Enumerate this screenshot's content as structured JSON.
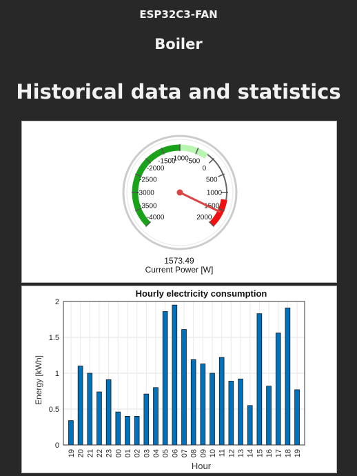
{
  "header": {
    "device_name": "ESP32C3-FAN",
    "room_name": "Boiler",
    "section_title": "Historical data and statistics"
  },
  "gauge": {
    "value": "1573.49",
    "label": "Current Power [W]",
    "min": -4000,
    "max": 2000,
    "current": 1573.49,
    "tick_labels": [
      "-4000",
      "-3500",
      "-3000",
      "-2500",
      "-2000",
      "-1500",
      "-1000",
      "-500",
      "0",
      "500",
      "1000",
      "1500",
      "2000"
    ],
    "tick_values": [
      -4000,
      -3500,
      -3000,
      -2500,
      -2000,
      -1500,
      -1000,
      -500,
      0,
      500,
      1000,
      1500,
      2000
    ],
    "bands": [
      {
        "from": -4000,
        "to": -1000,
        "color": "#1aa31a"
      },
      {
        "from": -1000,
        "to": -200,
        "color": "#b8f5b0"
      },
      {
        "from": 1200,
        "to": 2000,
        "color": "#ee1111"
      }
    ],
    "needle_color": "#d94545"
  },
  "chart_data": {
    "type": "bar",
    "title": "Hourly electricity consumption",
    "xlabel": "Hour",
    "ylabel": "Energy [kWh]",
    "ylim": [
      0,
      2
    ],
    "yticks": [
      "0",
      "0.5",
      "1",
      "1.5",
      "2"
    ],
    "ytick_values": [
      0,
      0.5,
      1,
      1.5,
      2
    ],
    "grid": true,
    "bar_color": "#0072bd",
    "categories": [
      "19",
      "20",
      "21",
      "22",
      "23",
      "00",
      "01",
      "02",
      "03",
      "04",
      "05",
      "06",
      "07",
      "08",
      "09",
      "10",
      "11",
      "12",
      "13",
      "14",
      "15",
      "16",
      "17",
      "18",
      "19"
    ],
    "values": [
      0.34,
      1.1,
      1.0,
      0.74,
      0.91,
      0.46,
      0.4,
      0.4,
      0.71,
      0.8,
      1.86,
      1.95,
      1.61,
      1.19,
      1.13,
      1.0,
      1.22,
      0.89,
      0.92,
      0.55,
      1.83,
      0.82,
      1.56,
      1.91,
      0.77
    ]
  }
}
